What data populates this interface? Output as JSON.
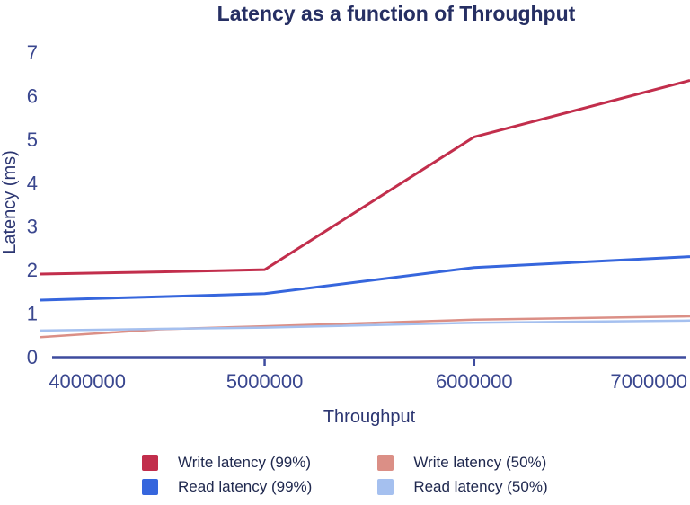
{
  "title": "Latency as a function of Throughput",
  "colors": {
    "title_text": "#262f63",
    "axis_line": "#3e4c9e",
    "tick_label": "#3a478f",
    "legend_text": "#20294f"
  },
  "chart_data": {
    "type": "line",
    "title": "Latency as a function of Throughput",
    "xlabel": "Throughput",
    "ylabel": "Latency (ms)",
    "xlim": [
      3930000,
      7030000
    ],
    "ylim": [
      0,
      7
    ],
    "grid": false,
    "legend_position": "bottom",
    "x": [
      3930000,
      4500000,
      5000000,
      6000000,
      7030000
    ],
    "x_ticks": [
      4000000,
      5000000,
      6000000,
      7000000
    ],
    "x_tick_labels": [
      "4000000",
      "5000000",
      "6000000",
      "7000000"
    ],
    "x_tick_marks": [
      5000000,
      6000000
    ],
    "y_ticks": [
      0,
      1,
      2,
      3,
      4,
      5,
      6,
      7
    ],
    "y_tick_labels": [
      "0",
      "1",
      "2",
      "3",
      "4",
      "5",
      "6",
      "7"
    ],
    "series": [
      {
        "name": "Write latency (99%)",
        "color": "#c22e4c",
        "width": 3,
        "values": [
          1.9,
          1.95,
          2.0,
          5.05,
          6.35
        ]
      },
      {
        "name": "Read latency (99%)",
        "color": "#3666dd",
        "width": 3,
        "values": [
          1.3,
          1.38,
          1.45,
          2.05,
          2.3
        ]
      },
      {
        "name": "Write latency (50%)",
        "color": "#db8f86",
        "width": 2.5,
        "values": [
          0.45,
          0.63,
          0.7,
          0.85,
          0.93
        ]
      },
      {
        "name": "Read latency (50%)",
        "color": "#a5c0ef",
        "width": 2.5,
        "values": [
          0.6,
          0.64,
          0.67,
          0.78,
          0.83
        ]
      }
    ]
  }
}
